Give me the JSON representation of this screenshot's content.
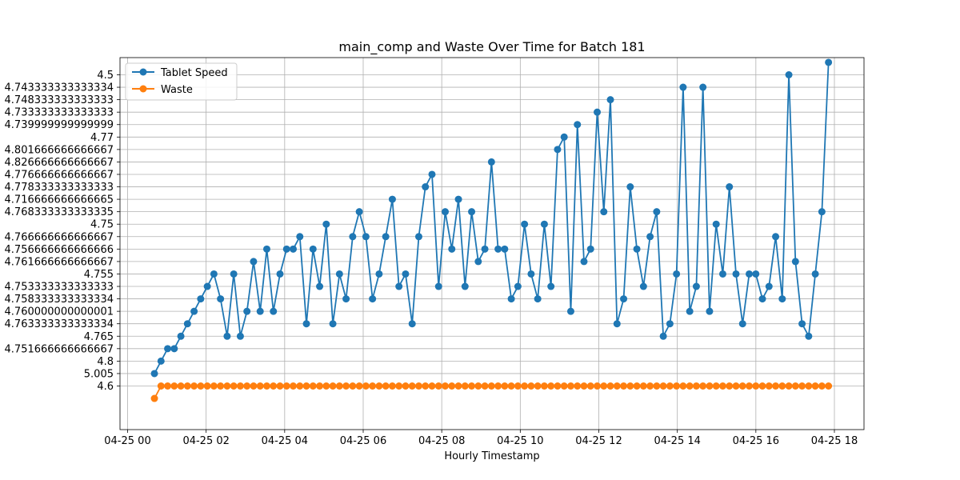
{
  "chart_data": {
    "type": "line",
    "title": "main_comp and Waste Over Time for Batch 181",
    "xlabel": "Hourly Timestamp",
    "ylabel": "",
    "x_tick_labels": [
      "04-25 00",
      "04-25 02",
      "04-25 04",
      "04-25 06",
      "04-25 08",
      "04-25 10",
      "04-25 12",
      "04-25 14",
      "04-25 16",
      "04-25 18"
    ],
    "y_categories": [
      "4.6",
      "5.005",
      "4.8",
      "4.751666666666667",
      "4.765",
      "4.763333333333334",
      "4.760000000000001",
      "4.758333333333334",
      "4.753333333333333",
      "4.755",
      "4.761666666666667",
      "4.756666666666666",
      "4.766666666666667",
      "4.75",
      "4.768333333333335",
      "4.716666666666665",
      "4.778333333333333",
      "4.776666666666667",
      "4.826666666666667",
      "4.801666666666667",
      "4.77",
      "4.739999999999999",
      "4.733333333333333",
      "4.748333333333333",
      "4.743333333333334",
      "4.5"
    ],
    "grid": true,
    "legend_position": "top-left",
    "x_start": "04-25 00:41",
    "x_end": "04-25 17:51",
    "series": [
      {
        "name": "Tablet Speed",
        "color": "#1f77b4",
        "marker": "circle",
        "values": [
          1,
          2,
          3,
          3,
          4,
          5,
          6,
          7,
          8,
          9,
          7,
          4,
          9,
          4,
          6,
          10,
          6,
          11,
          6,
          9,
          11,
          11,
          12,
          5,
          11,
          8,
          13,
          5,
          9,
          7,
          12,
          14,
          12,
          7,
          9,
          12,
          15,
          8,
          9,
          5,
          12,
          16,
          17,
          8,
          14,
          11,
          15,
          8,
          14,
          10,
          11,
          18,
          11,
          11,
          7,
          8,
          13,
          9,
          7,
          13,
          8,
          19,
          20,
          6,
          21,
          10,
          11,
          22,
          14,
          23,
          5,
          7,
          16,
          11,
          8,
          12,
          14,
          4,
          5,
          9,
          24,
          6,
          8,
          24,
          6,
          13,
          9,
          16,
          9,
          5,
          9,
          9,
          7,
          8,
          12,
          7,
          25,
          10,
          5,
          4,
          9,
          14,
          26
        ]
      },
      {
        "name": "Waste",
        "color": "#ff7f0e",
        "marker": "circle",
        "values": [
          -1,
          0,
          0,
          0,
          0,
          0,
          0,
          0,
          0,
          0,
          0,
          0,
          0,
          0,
          0,
          0,
          0,
          0,
          0,
          0,
          0,
          0,
          0,
          0,
          0,
          0,
          0,
          0,
          0,
          0,
          0,
          0,
          0,
          0,
          0,
          0,
          0,
          0,
          0,
          0,
          0,
          0,
          0,
          0,
          0,
          0,
          0,
          0,
          0,
          0,
          0,
          0,
          0,
          0,
          0,
          0,
          0,
          0,
          0,
          0,
          0,
          0,
          0,
          0,
          0,
          0,
          0,
          0,
          0,
          0,
          0,
          0,
          0,
          0,
          0,
          0,
          0,
          0,
          0,
          0,
          0,
          0,
          0,
          0,
          0,
          0,
          0,
          0,
          0,
          0,
          0,
          0,
          0,
          0,
          0,
          0,
          0,
          0,
          0,
          0,
          0,
          0,
          0
        ]
      }
    ]
  }
}
